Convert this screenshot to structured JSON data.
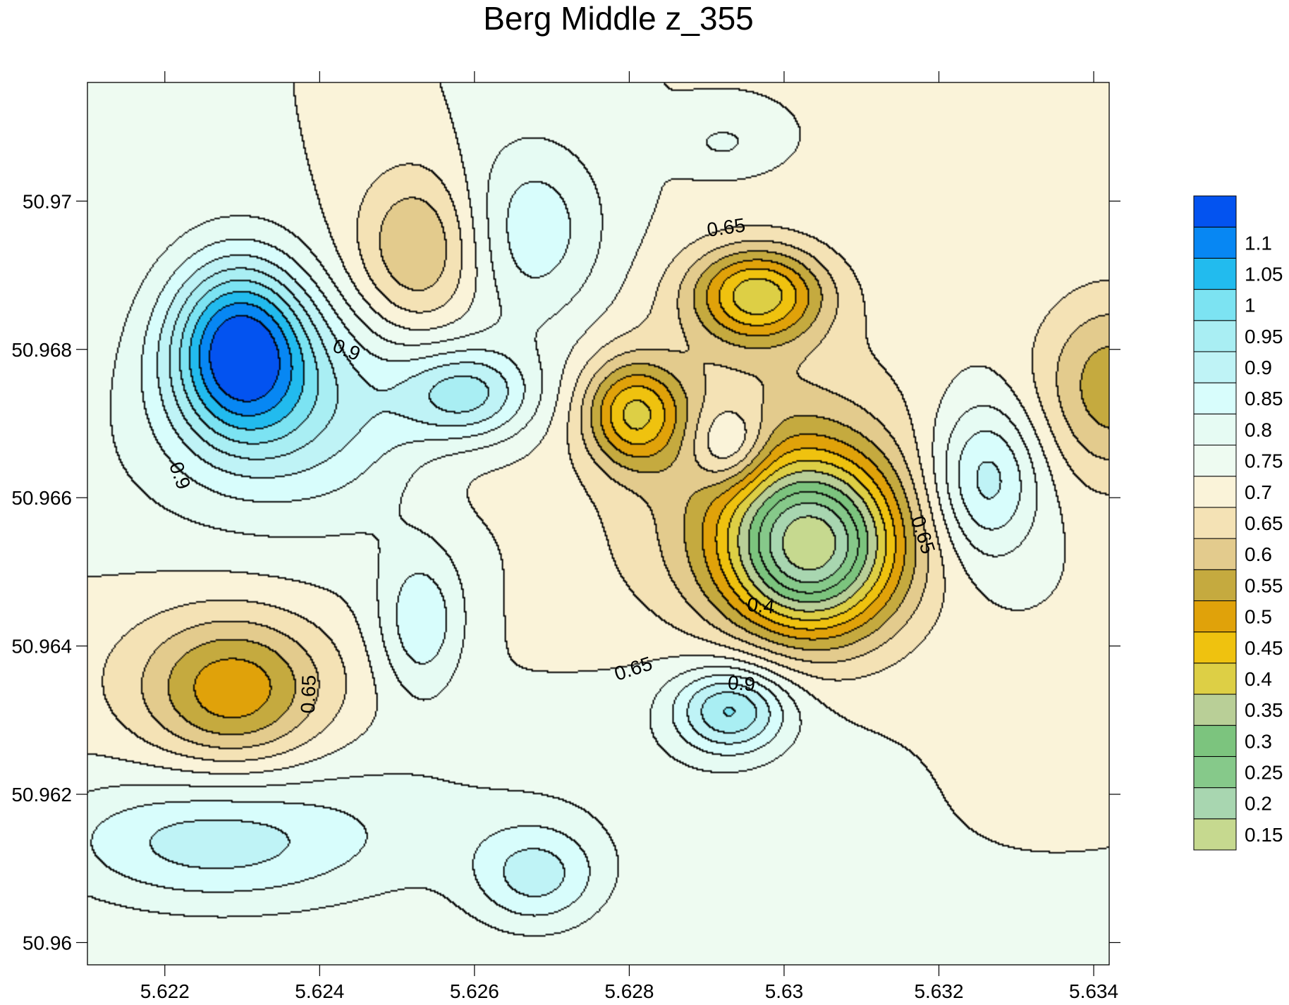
{
  "chart_data": {
    "type": "contour",
    "title": "Berg Middle z_355",
    "xlabel": "",
    "ylabel": "",
    "xlim": [
      5.621,
      5.6342
    ],
    "ylim": [
      50.9597,
      50.9716
    ],
    "xticks": [
      {
        "value": 5.622,
        "label": "5.622"
      },
      {
        "value": 5.624,
        "label": "5.624"
      },
      {
        "value": 5.626,
        "label": "5.626"
      },
      {
        "value": 5.628,
        "label": "5.628"
      },
      {
        "value": 5.63,
        "label": "5.63"
      },
      {
        "value": 5.632,
        "label": "5.632"
      },
      {
        "value": 5.634,
        "label": "5.634"
      }
    ],
    "yticks": [
      {
        "value": 50.96,
        "label": "50.96"
      },
      {
        "value": 50.962,
        "label": "50.962"
      },
      {
        "value": 50.964,
        "label": "50.964"
      },
      {
        "value": 50.966,
        "label": "50.966"
      },
      {
        "value": 50.968,
        "label": "50.968"
      },
      {
        "value": 50.97,
        "label": "50.97"
      }
    ],
    "levels": [
      0.15,
      0.2,
      0.25,
      0.3,
      0.35,
      0.4,
      0.45,
      0.5,
      0.55,
      0.6,
      0.65,
      0.7,
      0.75,
      0.8,
      0.85,
      0.9,
      0.95,
      1,
      1.05,
      1.1
    ],
    "colorbar": [
      {
        "label": "0.15",
        "color": "#c6d98f"
      },
      {
        "label": "0.2",
        "color": "#a8d6b0"
      },
      {
        "label": "0.25",
        "color": "#86c98a"
      },
      {
        "label": "0.3",
        "color": "#7cc47e"
      },
      {
        "label": "0.35",
        "color": "#b9cf97"
      },
      {
        "label": "0.4",
        "color": "#ddcf45"
      },
      {
        "label": "0.45",
        "color": "#efc20f"
      },
      {
        "label": "0.5",
        "color": "#e0a20a"
      },
      {
        "label": "0.55",
        "color": "#c5aa3f"
      },
      {
        "label": "0.6",
        "color": "#e3cb8d"
      },
      {
        "label": "0.65",
        "color": "#f4e2b5"
      },
      {
        "label": "0.7",
        "color": "#faf3d9"
      },
      {
        "label": "0.75",
        "color": "#eefbf1"
      },
      {
        "label": "0.8",
        "color": "#e6fbf3"
      },
      {
        "label": "0.85",
        "color": "#d8fdfc"
      },
      {
        "label": "0.9",
        "color": "#bff3f6"
      },
      {
        "label": "0.95",
        "color": "#a9eef3"
      },
      {
        "label": "1",
        "color": "#7ce3f2"
      },
      {
        "label": "1.05",
        "color": "#22bbee"
      },
      {
        "label": "1.1",
        "color": "#0787f3"
      },
      {
        "label": "",
        "color": "#0353f0"
      }
    ],
    "background_level": 0.7,
    "features": [
      {
        "x": 5.62295,
        "y": 50.96806,
        "sx": 0.00065,
        "sy": 0.00085,
        "amp": 0.38
      },
      {
        "x": 5.6238,
        "y": 50.9673,
        "sx": 0.0011,
        "sy": 0.0009,
        "amp": 0.12
      },
      {
        "x": 5.6259,
        "y": 50.9674,
        "sx": 0.0006,
        "sy": 0.00045,
        "amp": 0.2
      },
      {
        "x": 5.6235,
        "y": 50.9666,
        "sx": 0.0022,
        "sy": 0.0013,
        "amp": 0.06
      },
      {
        "x": 5.6229,
        "y": 50.96338,
        "sx": 0.0008,
        "sy": 0.0007,
        "amp": -0.2
      },
      {
        "x": 5.6225,
        "y": 50.9636,
        "sx": 0.0016,
        "sy": 0.001,
        "amp": -0.05
      },
      {
        "x": 5.6253,
        "y": 50.96935,
        "sx": 0.0006,
        "sy": 0.0008,
        "amp": -0.17
      },
      {
        "x": 5.6267,
        "y": 50.9696,
        "sx": 0.0007,
        "sy": 0.0009,
        "amp": 0.14
      },
      {
        "x": 5.6292,
        "y": 50.9708,
        "sx": 0.0004,
        "sy": 0.00025,
        "amp": 0.06
      },
      {
        "x": 5.62965,
        "y": 50.96875,
        "sx": 0.0006,
        "sy": 0.00045,
        "amp": -0.3
      },
      {
        "x": 5.62805,
        "y": 50.96715,
        "sx": 0.00045,
        "sy": 0.0005,
        "amp": -0.26
      },
      {
        "x": 5.6293,
        "y": 50.9667,
        "sx": 0.00035,
        "sy": 0.0004,
        "amp": 0.15
      },
      {
        "x": 5.63035,
        "y": 50.96535,
        "sx": 0.0008,
        "sy": 0.00085,
        "amp": -0.5
      },
      {
        "x": 5.6296,
        "y": 50.9662,
        "sx": 0.0016,
        "sy": 0.0017,
        "amp": -0.12
      },
      {
        "x": 5.6293,
        "y": 50.96315,
        "sx": 0.0005,
        "sy": 0.0004,
        "amp": 0.23
      },
      {
        "x": 5.6293,
        "y": 50.9632,
        "sx": 0.0012,
        "sy": 0.0008,
        "amp": 0.05
      },
      {
        "x": 5.6326,
        "y": 50.96625,
        "sx": 0.0005,
        "sy": 0.00075,
        "amp": 0.19
      },
      {
        "x": 5.63425,
        "y": 50.9675,
        "sx": 0.0007,
        "sy": 0.0009,
        "amp": -0.18
      },
      {
        "x": 5.6225,
        "y": 50.96135,
        "sx": 0.0014,
        "sy": 0.0006,
        "amp": 0.14
      },
      {
        "x": 5.6268,
        "y": 50.9609,
        "sx": 0.0006,
        "sy": 0.0005,
        "amp": 0.15
      },
      {
        "x": 5.6253,
        "y": 50.9643,
        "sx": 0.0004,
        "sy": 0.0007,
        "amp": 0.14
      },
      {
        "x": 5.6245,
        "y": 50.9617,
        "sx": 0.0025,
        "sy": 0.0009,
        "amp": 0.06
      },
      {
        "x": 5.6258,
        "y": 50.9664,
        "sx": 0.0007,
        "sy": 0.0006,
        "amp": -0.04
      }
    ],
    "contour_labels": [
      {
        "text": "0.65",
        "x": 5.62925,
        "y": 50.96965,
        "angle": -8
      },
      {
        "text": "0.9",
        "x": 5.62435,
        "y": 50.968,
        "angle": 22
      },
      {
        "text": "0.9",
        "x": 5.6222,
        "y": 50.9663,
        "angle": 70
      },
      {
        "text": "0.65",
        "x": 5.6318,
        "y": 50.9655,
        "angle": 72
      },
      {
        "text": "0.4",
        "x": 5.6297,
        "y": 50.96455,
        "angle": 6
      },
      {
        "text": "0.65",
        "x": 5.62805,
        "y": 50.9637,
        "angle": -18
      },
      {
        "text": "0.9",
        "x": 5.62945,
        "y": 50.9635,
        "angle": 4
      },
      {
        "text": "0.65",
        "x": 5.62385,
        "y": 50.96335,
        "angle": -88
      }
    ]
  }
}
